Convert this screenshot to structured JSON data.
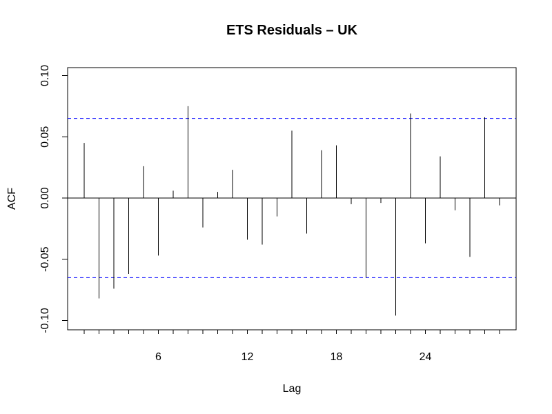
{
  "chart_data": {
    "type": "bar",
    "title": "ETS Residuals – UK",
    "xlabel": "Lag",
    "ylabel": "ACF",
    "xlim": [
      0,
      30
    ],
    "ylim": [
      -0.1,
      0.1
    ],
    "x_ticks": [
      6,
      12,
      18,
      24
    ],
    "y_ticks": [
      -0.1,
      -0.05,
      0.0,
      0.05,
      0.1
    ],
    "y_tick_labels": [
      "-0.10",
      "-0.05",
      "0.00",
      "0.05",
      "0.10"
    ],
    "confidence_bound": 0.065,
    "confidence_line_color": "#0000ff",
    "bar_color": "#000000",
    "lags": [
      1,
      2,
      3,
      4,
      5,
      6,
      7,
      8,
      9,
      10,
      11,
      12,
      13,
      14,
      15,
      16,
      17,
      18,
      19,
      20,
      21,
      22,
      23,
      24,
      25,
      26,
      27,
      28,
      29
    ],
    "values": [
      0.045,
      -0.082,
      -0.074,
      -0.062,
      0.026,
      -0.047,
      0.006,
      0.075,
      -0.024,
      0.005,
      0.023,
      -0.034,
      -0.038,
      -0.015,
      0.055,
      -0.029,
      0.039,
      0.043,
      -0.005,
      -0.065,
      -0.004,
      -0.096,
      0.069,
      -0.037,
      0.034,
      -0.01,
      -0.048,
      0.066,
      -0.006
    ]
  }
}
